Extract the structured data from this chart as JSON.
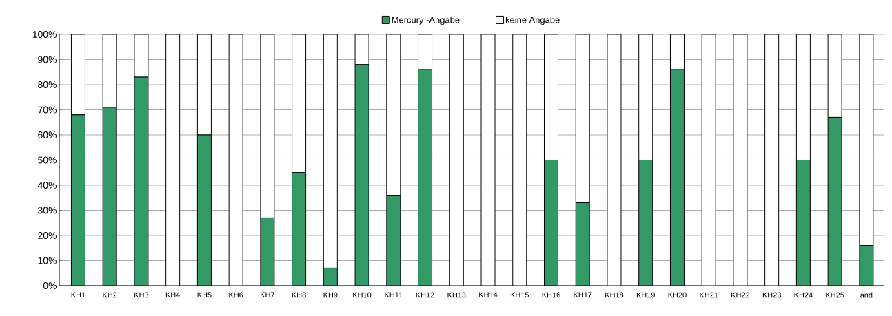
{
  "chart_data": {
    "type": "bar",
    "stacked": true,
    "legend": "top",
    "grid": "y",
    "categories": [
      "KH1",
      "KH2",
      "KH3",
      "KH4",
      "KH5",
      "KH6",
      "KH7",
      "KH8",
      "KH9",
      "KH10",
      "KH11",
      "KH12",
      "KH13",
      "KH14",
      "KH15",
      "KH16",
      "KH17",
      "KH18",
      "KH19",
      "KH20",
      "KH21",
      "KH22",
      "KH23",
      "KH24",
      "KH25",
      "and"
    ],
    "series": [
      {
        "name": "Mercury -Angabe",
        "color": "#339966",
        "values": [
          68,
          71,
          83,
          0,
          60,
          0,
          27,
          45,
          7,
          88,
          36,
          86,
          0,
          0,
          0,
          50,
          33,
          0,
          50,
          86,
          0,
          0,
          0,
          50,
          67,
          16
        ]
      },
      {
        "name": "keine Angabe",
        "color": "#ffffff",
        "values": [
          32,
          29,
          17,
          100,
          40,
          100,
          73,
          55,
          93,
          12,
          64,
          14,
          100,
          100,
          100,
          50,
          67,
          100,
          50,
          14,
          100,
          100,
          100,
          50,
          33,
          84
        ]
      }
    ],
    "ylim": [
      0,
      100
    ],
    "yticks": [
      {
        "value": 0,
        "label": "0%"
      },
      {
        "value": 10,
        "label": "10%"
      },
      {
        "value": 20,
        "label": "20%"
      },
      {
        "value": 30,
        "label": "30%"
      },
      {
        "value": 40,
        "label": "40%"
      },
      {
        "value": 50,
        "label": "50%"
      },
      {
        "value": 60,
        "label": "60%"
      },
      {
        "value": 70,
        "label": "70%"
      },
      {
        "value": 80,
        "label": "80%"
      },
      {
        "value": 90,
        "label": "90%"
      },
      {
        "value": 100,
        "label": "100%"
      }
    ]
  }
}
